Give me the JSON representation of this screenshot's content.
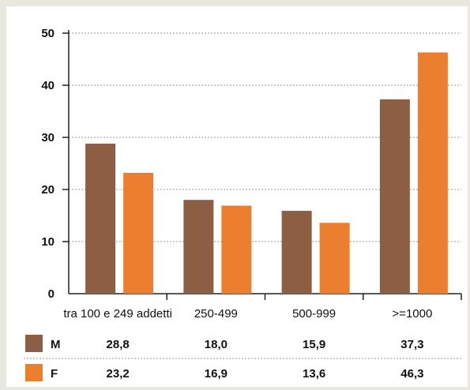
{
  "chart_data": {
    "type": "bar",
    "categories": [
      "tra 100 e 249 addetti",
      "250-499",
      "500-999",
      ">=1000"
    ],
    "series": [
      {
        "name": "M",
        "values": [
          28.8,
          18.0,
          15.9,
          37.3
        ],
        "labels": [
          "28,8",
          "18,0",
          "15,9",
          "37,3"
        ],
        "color": "#8c5f45"
      },
      {
        "name": "F",
        "values": [
          23.2,
          16.9,
          13.6,
          46.3
        ],
        "labels": [
          "23,2",
          "16,9",
          "13,6",
          "46,3"
        ],
        "color": "#ec7f2f"
      }
    ],
    "yticks": [
      "0",
      "10",
      "20",
      "30",
      "40",
      "50"
    ],
    "ylim": [
      0,
      50
    ],
    "grid": "dotted-horizontal",
    "legend": "table-below",
    "title": "",
    "xlabel": "",
    "ylabel": ""
  }
}
